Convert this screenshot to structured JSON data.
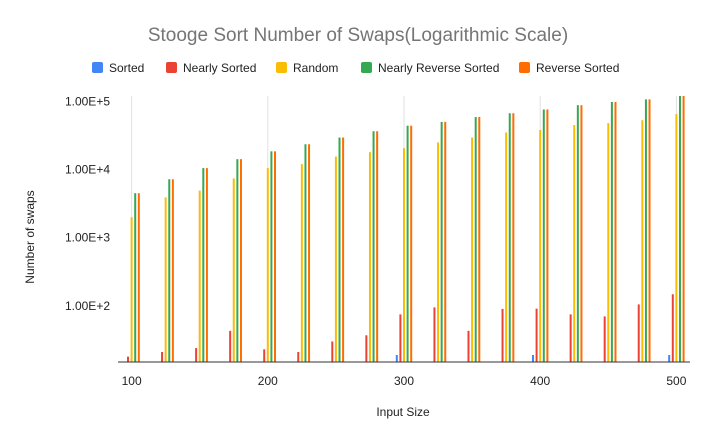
{
  "chart_data": {
    "type": "bar",
    "title": "Stooge Sort Number of Swaps(Logarithmic Scale)",
    "xlabel": "Input Size",
    "ylabel": "Number of swaps",
    "y_scale": "log",
    "ylim": [
      15,
      120000
    ],
    "xlim": [
      90,
      510
    ],
    "grid": "vertical",
    "legend_position": "top",
    "x": [
      100,
      125,
      150,
      175,
      200,
      225,
      250,
      275,
      300,
      325,
      350,
      375,
      400,
      425,
      450,
      475,
      500
    ],
    "x_ticks": [
      100,
      200,
      300,
      400,
      500
    ],
    "x_tick_labels": [
      "100",
      "200",
      "300",
      "400",
      "500"
    ],
    "y_ticks": [
      100,
      1000,
      10000,
      100000
    ],
    "y_tick_labels": [
      "1.00E+2",
      "1.00E+3",
      "1.00E+4",
      "1.00E+5"
    ],
    "series": [
      {
        "name": "Sorted",
        "color": "#4285F4",
        "values": [
          0,
          0,
          0,
          0,
          0,
          0,
          0,
          0,
          0,
          0,
          0,
          0,
          0,
          0,
          0,
          0,
          0
        ]
      },
      {
        "name": "Nearly Sorted",
        "color": "#EA4335",
        "values": [
          18,
          21,
          24,
          43,
          23,
          21,
          30,
          37,
          75,
          95,
          43,
          90,
          91,
          75,
          70,
          105,
          148
        ]
      },
      {
        "name": "Random",
        "color": "#FBBC04",
        "values": [
          2000,
          3900,
          4900,
          7400,
          10500,
          12000,
          15500,
          18000,
          20500,
          25000,
          29500,
          35000,
          38000,
          45000,
          48000,
          53000,
          65000
        ]
      },
      {
        "name": "Nearly Reverse Sorted",
        "color": "#34A853",
        "values": [
          4500,
          7200,
          10500,
          14200,
          18500,
          23500,
          29500,
          36500,
          44000,
          50000,
          59000,
          67000,
          76000,
          88000,
          98000,
          107000,
          120000
        ]
      },
      {
        "name": "Reverse Sorted",
        "color": "#FF6D01",
        "values": [
          4500,
          7200,
          10500,
          14200,
          18500,
          23500,
          29500,
          36500,
          44000,
          50000,
          59000,
          67000,
          76000,
          88000,
          98000,
          107000,
          120000
        ]
      }
    ]
  }
}
